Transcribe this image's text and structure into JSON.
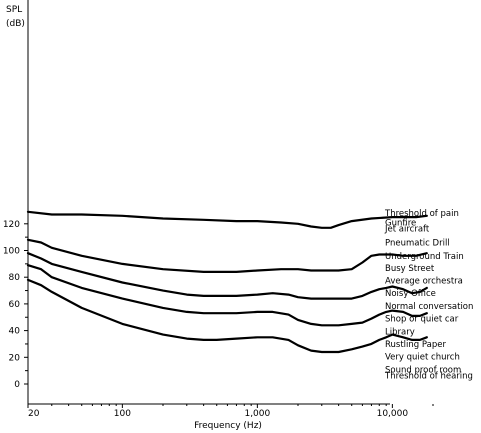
{
  "chart_data": {
    "type": "line",
    "title": "",
    "xlabel": "Frequency (Hz)",
    "ylabel": "SPL",
    "ylabel_unit": "(dB)",
    "x_scale": "log",
    "xlim": [
      20,
      20000
    ],
    "ylim": [
      -4,
      132
    ],
    "x_ticks": [
      20,
      100,
      1000,
      10000
    ],
    "x_tick_labels": [
      "20",
      "100",
      "1,000",
      "10,000"
    ],
    "y_ticks": [
      0,
      20,
      40,
      60,
      80,
      100,
      120
    ],
    "y_tick_labels": [
      "0",
      "20",
      "40",
      "60",
      "80",
      "100",
      "120"
    ],
    "grid": false,
    "legend": "none",
    "series": [
      {
        "x": [
          20,
          30,
          50,
          100,
          200,
          400,
          700,
          1000,
          1500,
          2000,
          2500,
          3000,
          3500,
          4000,
          5000,
          7000,
          10000,
          15000,
          18000
        ],
        "y": [
          129,
          127,
          127,
          126,
          124,
          123,
          122,
          122,
          121,
          120,
          118,
          117,
          117,
          119,
          122,
          124,
          125,
          125,
          126
        ]
      },
      {
        "x": [
          20,
          25,
          30,
          50,
          100,
          200,
          400,
          500,
          700,
          1000,
          1500,
          2000,
          2500,
          3000,
          3500,
          4000,
          5000,
          6000,
          7000,
          8000,
          10000,
          12000,
          15000,
          18000
        ],
        "y": [
          108,
          106,
          102,
          96,
          90,
          86,
          84,
          84,
          84,
          85,
          86,
          86,
          85,
          85,
          85,
          85,
          86,
          91,
          96,
          97,
          97,
          96,
          96,
          98
        ]
      },
      {
        "x": [
          20,
          25,
          30,
          50,
          100,
          200,
          300,
          400,
          500,
          700,
          1000,
          1300,
          1700,
          2000,
          2500,
          3000,
          3500,
          4000,
          5000,
          6000,
          7000,
          8000,
          9000,
          10000,
          12000,
          14000,
          16000,
          18000
        ],
        "y": [
          98,
          94,
          90,
          84,
          76,
          70,
          67,
          66,
          66,
          66,
          67,
          68,
          67,
          65,
          64,
          64,
          64,
          64,
          64,
          66,
          69,
          71,
          72,
          73,
          71,
          68,
          69,
          72
        ]
      },
      {
        "x": [
          20,
          25,
          30,
          50,
          100,
          200,
          300,
          400,
          500,
          700,
          1000,
          1300,
          1700,
          2000,
          2500,
          3000,
          3500,
          4000,
          5000,
          6000,
          7000,
          8000,
          9000,
          10000,
          12000,
          14000,
          16000,
          18000
        ],
        "y": [
          89,
          86,
          80,
          72,
          64,
          57,
          54,
          53,
          53,
          53,
          54,
          54,
          52,
          48,
          45,
          44,
          44,
          44,
          45,
          46,
          49,
          52,
          54,
          55,
          54,
          51,
          51,
          53
        ]
      },
      {
        "x": [
          20,
          25,
          30,
          50,
          100,
          200,
          300,
          400,
          500,
          700,
          1000,
          1300,
          1700,
          2000,
          2500,
          3000,
          3500,
          4000,
          5000,
          6000,
          7000,
          8000,
          9000,
          10000,
          12000,
          14000,
          16000,
          18000
        ],
        "y": [
          78,
          74,
          69,
          57,
          45,
          37,
          34,
          33,
          33,
          34,
          35,
          35,
          33,
          29,
          25,
          24,
          24,
          24,
          26,
          28,
          30,
          33,
          35,
          37,
          35,
          33,
          33,
          35
        ]
      }
    ],
    "annotations": [
      {
        "text": "Threshold of pain",
        "y": 128
      },
      {
        "text": "Gunfire",
        "y": 121
      },
      {
        "text": "Jet aircraft",
        "y": 116.5
      },
      {
        "text": "Pneumatic Drill",
        "y": 106
      },
      {
        "text": "Underground Train",
        "y": 96
      },
      {
        "text": "Busy Street",
        "y": 87
      },
      {
        "text": "Average orchestra",
        "y": 77.5
      },
      {
        "text": "Noisy Office",
        "y": 68
      },
      {
        "text": "Normal conversation",
        "y": 58.5
      },
      {
        "text": "Shop or quiet car",
        "y": 49
      },
      {
        "text": "Library",
        "y": 39.5
      },
      {
        "text": "Rustling Paper",
        "y": 30
      },
      {
        "text": "Very quiet church",
        "y": 20.5
      },
      {
        "text": "Sound proof room",
        "y": 11
      },
      {
        "text": "Threshold of hearing",
        "y": 6.5
      }
    ]
  }
}
